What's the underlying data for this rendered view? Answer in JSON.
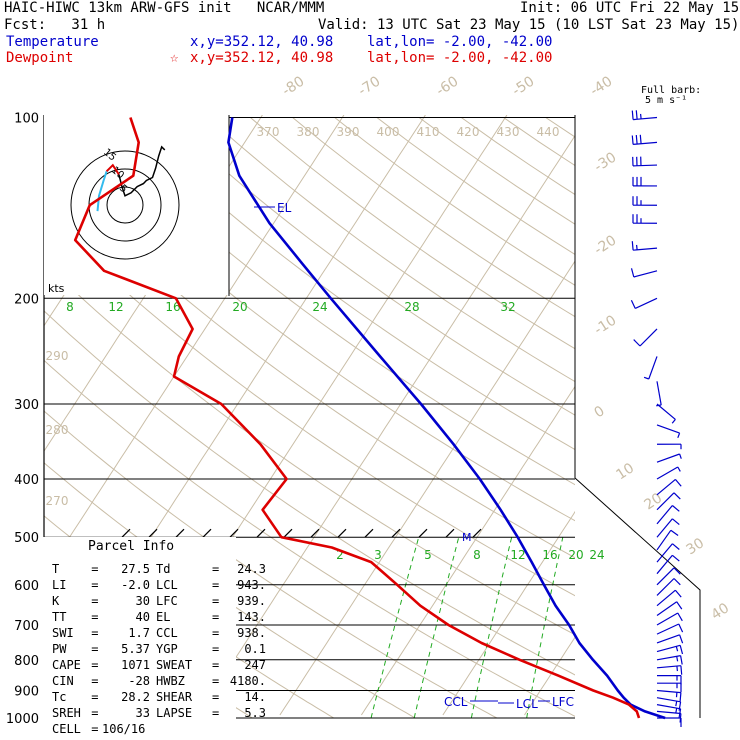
{
  "header": {
    "model": "HAIC-HIWC 13km ARW-GFS init   NCAR/MMM",
    "init": "Init: 06 UTC Fri 22 May 15",
    "fcst": "Fcst:   31 h",
    "valid": "Valid: 13 UTC Sat 23 May 15 (10 LST Sat 23 May 15)",
    "temp_label": "Temperature",
    "temp_loc": "x,y=352.12, 40.98    lat,lon= -2.00, -42.00",
    "dew_label": "Dewpoint",
    "dew_loc": "x,y=352.12, 40.98    lat,lon= -2.00, -42.00",
    "dew_marker": "☆",
    "barb_title": "Full barb:",
    "barb_unit": "5 m s⁻¹"
  },
  "parcel": {
    "title": "Parcel Info",
    "rows": [
      {
        "k1": "T",
        "v1": "27.5",
        "k2": "Td",
        "v2": "24.3"
      },
      {
        "k1": "LI",
        "v1": "-2.0",
        "k2": "LCL",
        "v2": "943."
      },
      {
        "k1": "K",
        "v1": "30",
        "k2": "LFC",
        "v2": "939."
      },
      {
        "k1": "TT",
        "v1": "40",
        "k2": "EL",
        "v2": "143."
      },
      {
        "k1": "SWI",
        "v1": "1.7",
        "k2": "CCL",
        "v2": "938."
      },
      {
        "k1": "PW",
        "v1": "5.37",
        "k2": "YGP",
        "v2": "0.1"
      },
      {
        "k1": "CAPE",
        "v1": "1071",
        "k2": "SWEAT",
        "v2": "247"
      },
      {
        "k1": "CIN",
        "v1": "-28",
        "k2": "HWBZ",
        "v2": "4180."
      },
      {
        "k1": "Tc",
        "v1": "28.2",
        "k2": "SHEAR",
        "v2": "14."
      },
      {
        "k1": "SREH",
        "v1": "33",
        "k2": "LAPSE",
        "v2": "5.3"
      },
      {
        "k1": "CELL",
        "v1": "106/16",
        "k2": "",
        "v2": ""
      }
    ]
  },
  "chart_data": {
    "type": "line",
    "pressure_ticks": [
      100,
      200,
      300,
      400,
      500,
      600,
      700,
      800,
      900,
      1000
    ],
    "isotherm_labels": [
      -80,
      -70,
      -60,
      -50,
      -40,
      -30,
      -20,
      -10,
      0,
      10,
      20,
      30,
      40
    ],
    "theta_labels_top": [
      370,
      380,
      390,
      400,
      410,
      420,
      430,
      440
    ],
    "theta_labels_left": [
      290,
      280,
      270
    ],
    "mixing_ratio_labels_top": [
      8,
      12,
      16,
      20,
      24,
      28,
      32
    ],
    "mixing_ratio_labels_bottom": [
      2,
      3,
      5,
      8,
      12,
      16,
      20,
      24
    ],
    "hodo_speed_unit": "kts",
    "hodo_ring_labels": [
      5,
      10,
      15
    ],
    "level_labels": {
      "el": "EL",
      "ccl": "CCL",
      "lcl": "LCL",
      "lfc": "LFC",
      "m": "M"
    },
    "series": [
      {
        "name": "Temperature",
        "color": "#0000cc",
        "points": [
          [
            1000,
            27.5
          ],
          [
            975,
            24.5
          ],
          [
            950,
            22.2
          ],
          [
            925,
            20.8
          ],
          [
            900,
            19.5
          ],
          [
            850,
            17.0
          ],
          [
            800,
            14.0
          ],
          [
            750,
            11.0
          ],
          [
            700,
            8.3
          ],
          [
            650,
            5.1
          ],
          [
            600,
            2.0
          ],
          [
            550,
            -1.3
          ],
          [
            500,
            -5.0
          ],
          [
            450,
            -9.3
          ],
          [
            400,
            -14.3
          ],
          [
            350,
            -20.3
          ],
          [
            300,
            -27.5
          ],
          [
            250,
            -36.3
          ],
          [
            200,
            -47.0
          ],
          [
            175,
            -53.3
          ],
          [
            150,
            -60.5
          ],
          [
            125,
            -68.0
          ],
          [
            110,
            -72.0
          ],
          [
            100,
            -73.5
          ]
        ]
      },
      {
        "name": "Dewpoint",
        "color": "#dd0000",
        "points": [
          [
            1000,
            24.3
          ],
          [
            975,
            23.5
          ],
          [
            950,
            22.0
          ],
          [
            925,
            19.5
          ],
          [
            900,
            16.5
          ],
          [
            850,
            11.0
          ],
          [
            800,
            5.0
          ],
          [
            750,
            -1.0
          ],
          [
            700,
            -6.5
          ],
          [
            650,
            -11.5
          ],
          [
            600,
            -16.0
          ],
          [
            550,
            -21.0
          ],
          [
            520,
            -27.0
          ],
          [
            500,
            -34.0
          ],
          [
            450,
            -38.5
          ],
          [
            400,
            -38.0
          ],
          [
            350,
            -44.0
          ],
          [
            300,
            -52.0
          ],
          [
            270,
            -60.0
          ],
          [
            250,
            -61.0
          ],
          [
            225,
            -61.5
          ],
          [
            200,
            -66.0
          ],
          [
            180,
            -77.0
          ],
          [
            160,
            -83.0
          ],
          [
            140,
            -84.0
          ],
          [
            125,
            -81.0
          ],
          [
            110,
            -83.0
          ],
          [
            100,
            -86.0
          ]
        ]
      }
    ],
    "wind_barbs": [
      {
        "p": 1000,
        "dir": 90,
        "spd": 5
      },
      {
        "p": 975,
        "dir": 95,
        "spd": 6
      },
      {
        "p": 950,
        "dir": 100,
        "spd": 7
      },
      {
        "p": 925,
        "dir": 100,
        "spd": 8
      },
      {
        "p": 900,
        "dir": 95,
        "spd": 9
      },
      {
        "p": 875,
        "dir": 90,
        "spd": 9
      },
      {
        "p": 850,
        "dir": 90,
        "spd": 8
      },
      {
        "p": 825,
        "dir": 85,
        "spd": 8
      },
      {
        "p": 800,
        "dir": 80,
        "spd": 7
      },
      {
        "p": 775,
        "dir": 75,
        "spd": 7
      },
      {
        "p": 750,
        "dir": 70,
        "spd": 6
      },
      {
        "p": 725,
        "dir": 65,
        "spd": 6
      },
      {
        "p": 700,
        "dir": 60,
        "spd": 6
      },
      {
        "p": 675,
        "dir": 55,
        "spd": 5
      },
      {
        "p": 650,
        "dir": 50,
        "spd": 5
      },
      {
        "p": 625,
        "dir": 45,
        "spd": 5
      },
      {
        "p": 600,
        "dir": 45,
        "spd": 6
      },
      {
        "p": 575,
        "dir": 40,
        "spd": 6
      },
      {
        "p": 550,
        "dir": 40,
        "spd": 6
      },
      {
        "p": 525,
        "dir": 35,
        "spd": 6
      },
      {
        "p": 500,
        "dir": 40,
        "spd": 6
      },
      {
        "p": 475,
        "dir": 40,
        "spd": 6
      },
      {
        "p": 450,
        "dir": 45,
        "spd": 5
      },
      {
        "p": 425,
        "dir": 50,
        "spd": 5
      },
      {
        "p": 400,
        "dir": 60,
        "spd": 4
      },
      {
        "p": 375,
        "dir": 70,
        "spd": 3
      },
      {
        "p": 350,
        "dir": 90,
        "spd": 3
      },
      {
        "p": 325,
        "dir": 110,
        "spd": 3
      },
      {
        "p": 300,
        "dir": 130,
        "spd": 3
      },
      {
        "p": 275,
        "dir": 170,
        "spd": 4
      },
      {
        "p": 250,
        "dir": 200,
        "spd": 4
      },
      {
        "p": 225,
        "dir": 225,
        "spd": 5
      },
      {
        "p": 200,
        "dir": 245,
        "spd": 5
      },
      {
        "p": 180,
        "dir": 255,
        "spd": 6
      },
      {
        "p": 165,
        "dir": 265,
        "spd": 9
      },
      {
        "p": 150,
        "dir": 270,
        "spd": 12
      },
      {
        "p": 140,
        "dir": 270,
        "spd": 14
      },
      {
        "p": 130,
        "dir": 270,
        "spd": 15
      },
      {
        "p": 120,
        "dir": 268,
        "spd": 16
      },
      {
        "p": 110,
        "dir": 265,
        "spd": 15
      },
      {
        "p": 100,
        "dir": 265,
        "spd": 12
      }
    ],
    "hodograph": [
      [
        -9,
        -2
      ],
      [
        -8.5,
        3
      ],
      [
        -7,
        8
      ],
      [
        -6,
        11
      ],
      [
        -4,
        13
      ],
      [
        -2,
        10
      ],
      [
        -1,
        6
      ],
      [
        0,
        3
      ],
      [
        2,
        4
      ],
      [
        4,
        6
      ],
      [
        6,
        7
      ],
      [
        7,
        8
      ],
      [
        9,
        9
      ],
      [
        10,
        12
      ],
      [
        11,
        16
      ],
      [
        12,
        19
      ],
      [
        13,
        18
      ]
    ]
  }
}
